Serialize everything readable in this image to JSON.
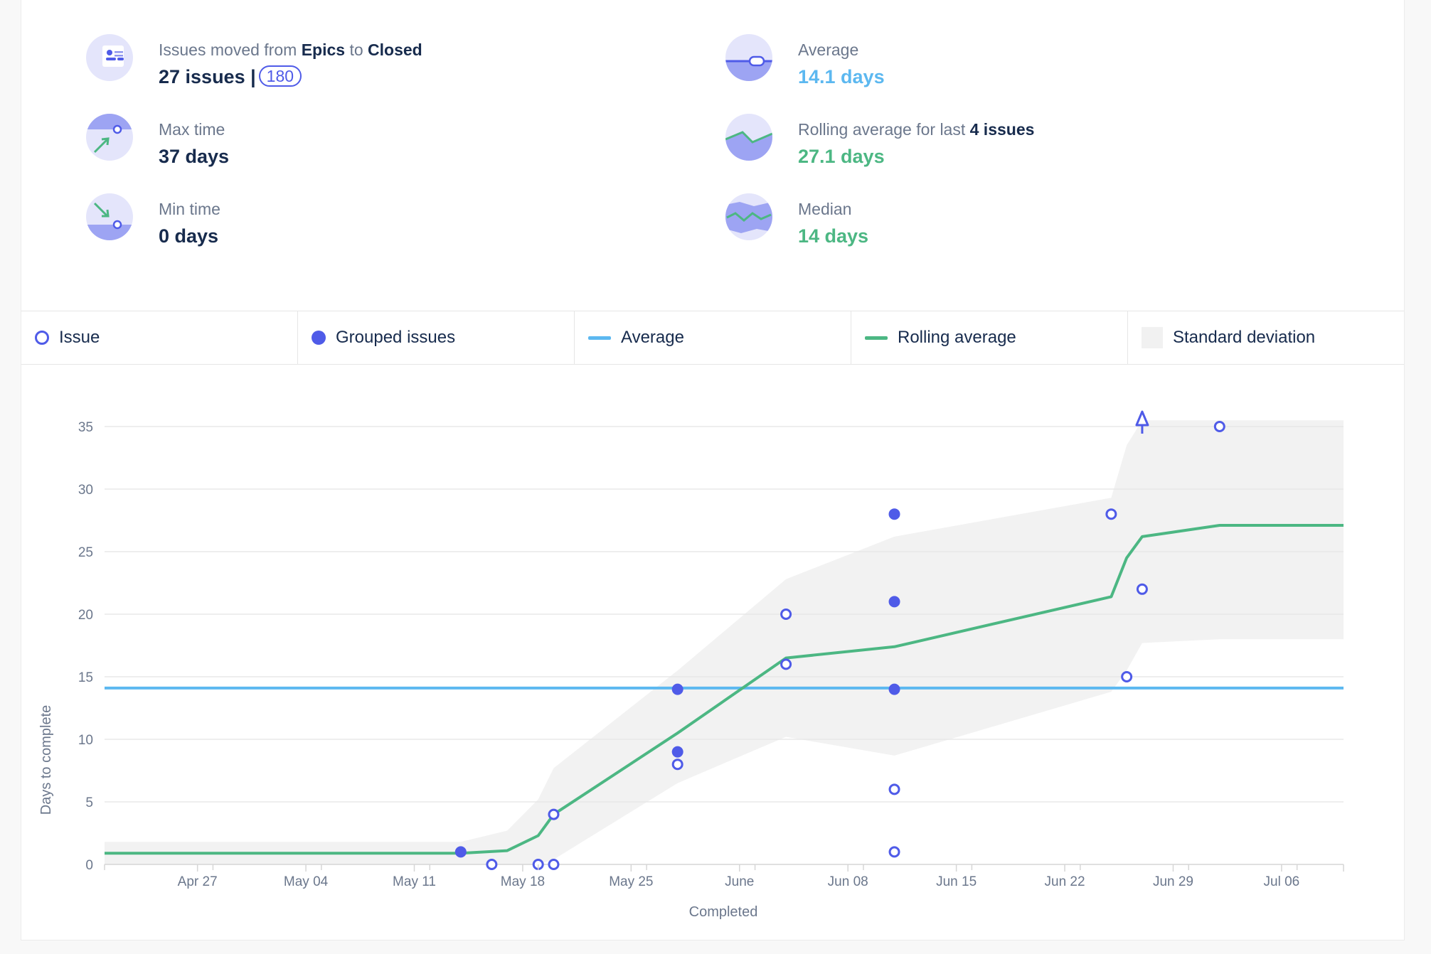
{
  "stats": {
    "moved": {
      "label_prefix": "Issues moved from",
      "from": "Epics",
      "label_mid": "to",
      "to": "Closed",
      "value": "27 issues |",
      "badge": "180"
    },
    "max": {
      "label": "Max time",
      "value": "37 days"
    },
    "min": {
      "label": "Min time",
      "value": "0 days"
    },
    "average": {
      "label": "Average",
      "value": "14.1 days"
    },
    "rolling": {
      "label_prefix": "Rolling average for last",
      "count": "4 issues",
      "value": "27.1 days"
    },
    "median": {
      "label": "Median",
      "value": "14 days"
    }
  },
  "legend": {
    "issue": "Issue",
    "grouped": "Grouped issues",
    "average": "Average",
    "rolling": "Rolling average",
    "std": "Standard deviation"
  },
  "colors": {
    "issue": "#4f5be8",
    "average": "#5cb8f0",
    "rolling": "#4cb783",
    "std_band": "#f2f2f2",
    "grid": "#e8e8e8"
  },
  "chart_data": {
    "type": "scatter",
    "xlabel": "Completed",
    "ylabel": "Days to complete",
    "x_domain": [
      "2023-04-21",
      "2023-07-10"
    ],
    "ylim": [
      0,
      35
    ],
    "y_ticks": [
      0,
      5,
      10,
      15,
      20,
      25,
      30,
      35
    ],
    "x_ticks": [
      {
        "date": "2023-04-27",
        "label": "Apr 27"
      },
      {
        "date": "2023-05-04",
        "label": "May 04"
      },
      {
        "date": "2023-05-11",
        "label": "May 11"
      },
      {
        "date": "2023-05-18",
        "label": "May 18"
      },
      {
        "date": "2023-05-25",
        "label": "May 25"
      },
      {
        "date": "2023-06-01",
        "label": "June"
      },
      {
        "date": "2023-06-08",
        "label": "Jun 08"
      },
      {
        "date": "2023-06-15",
        "label": "Jun 15"
      },
      {
        "date": "2023-06-22",
        "label": "Jun 22"
      },
      {
        "date": "2023-06-29",
        "label": "Jun 29"
      },
      {
        "date": "2023-07-06",
        "label": "Jul 06"
      }
    ],
    "issues": [
      {
        "x": "2023-05-14",
        "y": 1,
        "grouped": true
      },
      {
        "x": "2023-05-16",
        "y": 0,
        "grouped": false
      },
      {
        "x": "2023-05-19",
        "y": 0,
        "grouped": false
      },
      {
        "x": "2023-05-20",
        "y": 0,
        "grouped": false
      },
      {
        "x": "2023-05-20",
        "y": 4,
        "grouped": false
      },
      {
        "x": "2023-05-28",
        "y": 14,
        "grouped": true
      },
      {
        "x": "2023-05-28",
        "y": 9,
        "grouped": true
      },
      {
        "x": "2023-05-28",
        "y": 8,
        "grouped": false
      },
      {
        "x": "2023-06-04",
        "y": 20,
        "grouped": false
      },
      {
        "x": "2023-06-04",
        "y": 16,
        "grouped": false
      },
      {
        "x": "2023-06-11",
        "y": 28,
        "grouped": true
      },
      {
        "x": "2023-06-11",
        "y": 21,
        "grouped": true
      },
      {
        "x": "2023-06-11",
        "y": 14,
        "grouped": true
      },
      {
        "x": "2023-06-11",
        "y": 6,
        "grouped": false
      },
      {
        "x": "2023-06-11",
        "y": 1,
        "grouped": false
      },
      {
        "x": "2023-06-25",
        "y": 28,
        "grouped": false
      },
      {
        "x": "2023-06-26",
        "y": 15,
        "grouped": false
      },
      {
        "x": "2023-06-27",
        "y": 22,
        "grouped": false
      },
      {
        "x": "2023-07-02",
        "y": 35,
        "grouped": false
      }
    ],
    "outliers_above": [
      {
        "x": "2023-06-27",
        "y": 37
      }
    ],
    "average": 14.1,
    "rolling_average": [
      {
        "x": "2023-04-21",
        "y": 0.9
      },
      {
        "x": "2023-05-14",
        "y": 0.9
      },
      {
        "x": "2023-05-17",
        "y": 1.1
      },
      {
        "x": "2023-05-19",
        "y": 2.3
      },
      {
        "x": "2023-05-20",
        "y": 4
      },
      {
        "x": "2023-05-28",
        "y": 10.5
      },
      {
        "x": "2023-06-04",
        "y": 16.5
      },
      {
        "x": "2023-06-11",
        "y": 17.4
      },
      {
        "x": "2023-06-25",
        "y": 21.4
      },
      {
        "x": "2023-06-26",
        "y": 24.5
      },
      {
        "x": "2023-06-27",
        "y": 26.2
      },
      {
        "x": "2023-07-02",
        "y": 27.1
      },
      {
        "x": "2023-07-10",
        "y": 27.1
      }
    ],
    "std_upper": [
      {
        "x": "2023-04-21",
        "y": 1.8
      },
      {
        "x": "2023-05-14",
        "y": 1.8
      },
      {
        "x": "2023-05-17",
        "y": 2.7
      },
      {
        "x": "2023-05-19",
        "y": 5.2
      },
      {
        "x": "2023-05-20",
        "y": 7.7
      },
      {
        "x": "2023-05-28",
        "y": 15.5
      },
      {
        "x": "2023-06-04",
        "y": 22.8
      },
      {
        "x": "2023-06-11",
        "y": 26.2
      },
      {
        "x": "2023-06-25",
        "y": 29.3
      },
      {
        "x": "2023-06-26",
        "y": 33.5
      },
      {
        "x": "2023-06-27",
        "y": 35.5
      },
      {
        "x": "2023-07-02",
        "y": 35.5
      },
      {
        "x": "2023-07-10",
        "y": 35.5
      }
    ],
    "std_lower": [
      {
        "x": "2023-04-21",
        "y": 0
      },
      {
        "x": "2023-05-14",
        "y": 0
      },
      {
        "x": "2023-05-17",
        "y": 0
      },
      {
        "x": "2023-05-19",
        "y": 0
      },
      {
        "x": "2023-05-20",
        "y": 0.4
      },
      {
        "x": "2023-05-28",
        "y": 6.5
      },
      {
        "x": "2023-06-04",
        "y": 10.2
      },
      {
        "x": "2023-06-11",
        "y": 8.7
      },
      {
        "x": "2023-06-25",
        "y": 13.8
      },
      {
        "x": "2023-06-26",
        "y": 15.5
      },
      {
        "x": "2023-06-27",
        "y": 17.7
      },
      {
        "x": "2023-07-02",
        "y": 18
      },
      {
        "x": "2023-07-10",
        "y": 18
      }
    ]
  }
}
